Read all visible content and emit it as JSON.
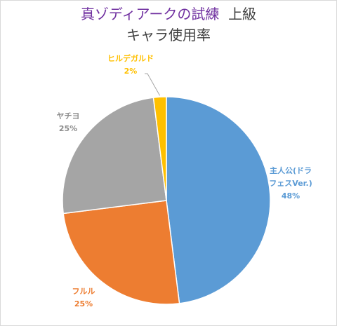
{
  "chart_data": {
    "type": "pie",
    "title": "真ゾディアークの試練",
    "title_suffix": "上級",
    "subtitle": "キャラ使用率",
    "slices": [
      {
        "label_line1": "主人公(ドラ",
        "label_line2": "フェスVer.)",
        "percent_label": "48%",
        "value": 48,
        "color": "#5b9bd5"
      },
      {
        "label_line1": "フルル",
        "percent_label": "25%",
        "value": 25,
        "color": "#ed7d31"
      },
      {
        "label_line1": "ヤチヨ",
        "percent_label": "25%",
        "value": 25,
        "color": "#a5a5a5"
      },
      {
        "label_line1": "ヒルデガルド",
        "percent_label": "2%",
        "value": 2,
        "color": "#ffc000"
      }
    ],
    "start_angle_deg": 0,
    "direction": "clockwise"
  }
}
